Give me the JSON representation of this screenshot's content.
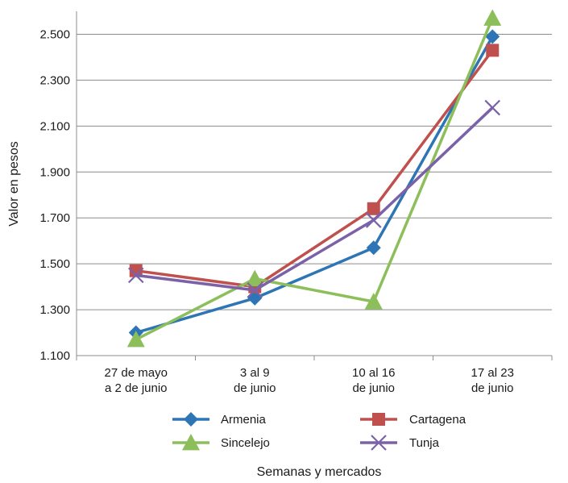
{
  "chart_data": {
    "type": "line",
    "xlabel": "Semanas y mercados",
    "ylabel": "Valor en pesos",
    "categories": [
      [
        "27 de mayo",
        "a 2 de junio"
      ],
      [
        "3 al 9",
        "de junio"
      ],
      [
        "10 al 16",
        "de junio"
      ],
      [
        "17 al 23",
        "de junio"
      ]
    ],
    "ylim": [
      1100,
      2600
    ],
    "yticks": [
      {
        "value": 1100,
        "label": "1.100"
      },
      {
        "value": 1300,
        "label": "1.300"
      },
      {
        "value": 1500,
        "label": "1.500"
      },
      {
        "value": 1700,
        "label": "1.700"
      },
      {
        "value": 1900,
        "label": "1.900"
      },
      {
        "value": 2100,
        "label": "2.100"
      },
      {
        "value": 2300,
        "label": "2.300"
      },
      {
        "value": 2500,
        "label": "2.500"
      }
    ],
    "grid": "horizontal",
    "legend_position": "bottom",
    "series": [
      {
        "name": "Armenia",
        "color": "#2e75b6",
        "marker": "diamond",
        "values": [
          1200,
          1350,
          1570,
          2490
        ]
      },
      {
        "name": "Cartagena",
        "color": "#c0504d",
        "marker": "square",
        "values": [
          1470,
          1400,
          1740,
          2430
        ]
      },
      {
        "name": "Sincelejo",
        "color": "#8cbf5a",
        "marker": "triangle",
        "values": [
          1170,
          1435,
          1335,
          2570
        ]
      },
      {
        "name": "Tunja",
        "color": "#7b62a8",
        "marker": "x",
        "values": [
          1450,
          1385,
          1690,
          2180
        ]
      }
    ]
  }
}
